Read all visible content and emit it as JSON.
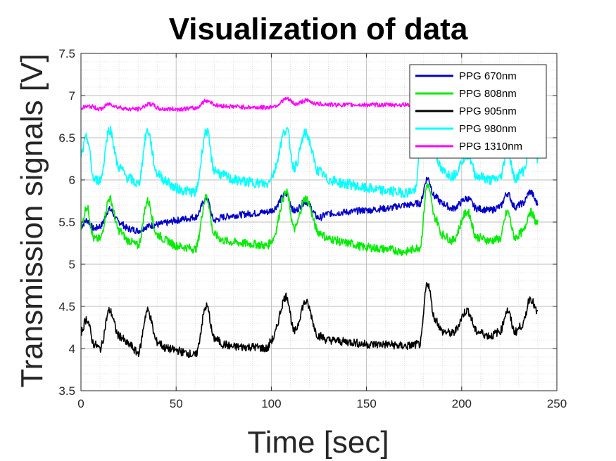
{
  "chart_data": {
    "type": "line",
    "title": "Visualization of data",
    "xlabel": "Time [sec]",
    "ylabel": "Transmission signals [V]",
    "xlim": [
      0,
      250
    ],
    "ylim": [
      3.5,
      7.5
    ],
    "xticks": [
      0,
      50,
      100,
      150,
      200,
      250
    ],
    "xtick_labels": [
      "0",
      "50",
      "100",
      "150",
      "200",
      "250"
    ],
    "yticks": [
      3.5,
      4,
      4.5,
      5,
      5.5,
      6,
      6.5,
      7,
      7.5
    ],
    "ytick_labels": [
      "3.5",
      "4",
      "4.5",
      "5",
      "5.5",
      "6",
      "6.5",
      "7",
      "7.5"
    ],
    "grid": true,
    "minor_grid": true,
    "legend_position": "top-right",
    "series": [
      {
        "name": "PPG 670nm",
        "color": "#0000CC",
        "band": 0.04,
        "x": [
          0,
          3,
          7,
          10,
          15,
          20,
          25,
          30,
          35,
          40,
          45,
          50,
          55,
          60,
          66,
          70,
          75,
          80,
          90,
          98,
          100,
          108,
          112,
          118,
          125,
          130,
          140,
          150,
          160,
          170,
          178,
          182,
          186,
          190,
          195,
          203,
          208,
          215,
          220,
          224,
          228,
          232,
          236,
          240
        ],
        "y": [
          5.45,
          5.52,
          5.42,
          5.45,
          5.65,
          5.5,
          5.42,
          5.4,
          5.45,
          5.47,
          5.49,
          5.52,
          5.54,
          5.56,
          5.78,
          5.52,
          5.56,
          5.58,
          5.6,
          5.62,
          5.64,
          5.83,
          5.63,
          5.74,
          5.55,
          5.6,
          5.62,
          5.64,
          5.66,
          5.7,
          5.72,
          6.02,
          5.8,
          5.72,
          5.66,
          5.78,
          5.66,
          5.64,
          5.68,
          5.84,
          5.68,
          5.72,
          5.86,
          5.72
        ]
      },
      {
        "name": "PPG 808nm",
        "color": "#00EE00",
        "band": 0.05,
        "x": [
          0,
          3,
          7,
          10,
          15,
          20,
          25,
          30,
          35,
          40,
          45,
          50,
          55,
          60,
          66,
          70,
          75,
          80,
          90,
          98,
          100,
          108,
          112,
          118,
          125,
          130,
          140,
          150,
          160,
          170,
          178,
          182,
          186,
          190,
          195,
          203,
          208,
          215,
          220,
          224,
          228,
          232,
          236,
          240
        ],
        "y": [
          5.45,
          5.68,
          5.3,
          5.3,
          5.78,
          5.4,
          5.28,
          5.22,
          5.75,
          5.35,
          5.28,
          5.22,
          5.2,
          5.18,
          5.8,
          5.35,
          5.28,
          5.26,
          5.24,
          5.22,
          5.28,
          5.85,
          5.42,
          5.78,
          5.38,
          5.3,
          5.25,
          5.2,
          5.18,
          5.15,
          5.2,
          5.95,
          5.55,
          5.35,
          5.28,
          5.62,
          5.32,
          5.28,
          5.3,
          5.62,
          5.32,
          5.38,
          5.62,
          5.48
        ]
      },
      {
        "name": "PPG 905nm",
        "color": "#000000",
        "band": 0.05,
        "x": [
          0,
          3,
          7,
          10,
          15,
          20,
          25,
          30,
          35,
          40,
          45,
          50,
          55,
          60,
          66,
          70,
          75,
          80,
          90,
          98,
          100,
          108,
          112,
          118,
          125,
          130,
          140,
          150,
          160,
          170,
          178,
          182,
          186,
          190,
          195,
          203,
          208,
          215,
          220,
          224,
          228,
          232,
          236,
          240
        ],
        "y": [
          4.2,
          4.35,
          4.05,
          4.0,
          4.45,
          4.15,
          4.05,
          3.95,
          4.45,
          4.08,
          4.0,
          3.98,
          3.95,
          3.92,
          4.5,
          4.12,
          4.05,
          4.02,
          4.02,
          4.0,
          4.1,
          4.62,
          4.2,
          4.55,
          4.15,
          4.1,
          4.08,
          4.05,
          4.05,
          4.03,
          4.05,
          4.78,
          4.35,
          4.2,
          4.18,
          4.45,
          4.2,
          4.15,
          4.2,
          4.45,
          4.2,
          4.28,
          4.6,
          4.42
        ]
      },
      {
        "name": "PPG 980nm",
        "color": "#00FFFF",
        "band": 0.06,
        "x": [
          0,
          3,
          7,
          10,
          15,
          20,
          25,
          30,
          35,
          40,
          45,
          50,
          55,
          60,
          66,
          70,
          75,
          80,
          90,
          98,
          100,
          108,
          112,
          118,
          125,
          130,
          140,
          150,
          160,
          170,
          176,
          178,
          182,
          186,
          190,
          195,
          203,
          208,
          215,
          220,
          224,
          228,
          232,
          236,
          240
        ],
        "y": [
          6.3,
          6.5,
          6.0,
          6.0,
          6.6,
          6.15,
          6.02,
          5.95,
          6.58,
          6.08,
          5.98,
          5.9,
          5.87,
          5.85,
          6.58,
          6.12,
          6.05,
          6.0,
          5.97,
          5.95,
          6.05,
          6.6,
          6.15,
          6.55,
          6.1,
          6.0,
          5.95,
          5.9,
          5.87,
          5.85,
          5.88,
          6.4,
          6.6,
          6.3,
          6.1,
          6.05,
          6.3,
          6.05,
          6.0,
          6.02,
          6.35,
          6.02,
          6.1,
          6.35,
          6.25
        ]
      },
      {
        "name": "PPG 1310nm",
        "color": "#FF00FF",
        "band": 0.025,
        "x": [
          0,
          5,
          10,
          15,
          20,
          25,
          30,
          36,
          42,
          50,
          60,
          66,
          72,
          80,
          90,
          98,
          102,
          108,
          113,
          118,
          125,
          135,
          150,
          165,
          178
        ],
        "y": [
          6.86,
          6.87,
          6.84,
          6.9,
          6.86,
          6.84,
          6.84,
          6.9,
          6.84,
          6.84,
          6.85,
          6.94,
          6.88,
          6.87,
          6.86,
          6.86,
          6.88,
          6.96,
          6.9,
          6.94,
          6.9,
          6.89,
          6.89,
          6.89,
          6.9
        ]
      }
    ]
  }
}
